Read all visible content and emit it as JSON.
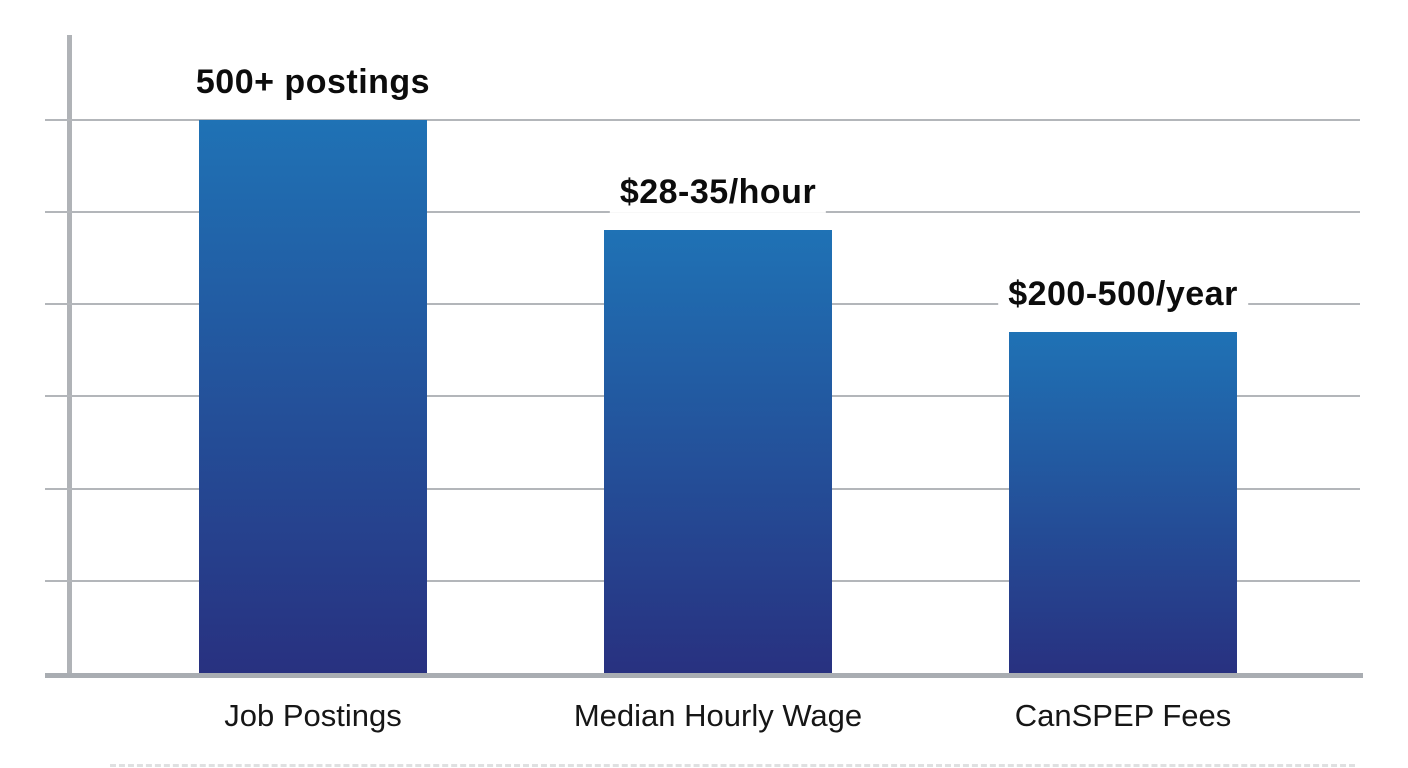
{
  "chart_data": {
    "type": "bar",
    "title": "",
    "xlabel": "",
    "ylabel": "",
    "categories": [
      "Job Postings",
      "Median Hourly Wage",
      "CanSPEP Fees"
    ],
    "values": [
      6.0,
      4.8,
      3.7
    ],
    "value_labels": [
      "500+ postings",
      "$28-35/hour",
      "$200-500/year"
    ],
    "value_note": "y-axis unlabeled; bar values estimated in gridline units (1 unit per horizontal gridline, baseline = 0)",
    "ylim": [
      0,
      6.9
    ],
    "y_gridline_units": [
      1,
      2,
      3,
      4,
      5,
      6
    ],
    "grid": "horizontal",
    "legend_position": "none",
    "colors": {
      "bar_gradient_top": "#1f72b5",
      "bar_gradient_bottom": "#283180",
      "gridline": "#b3b6ba",
      "axis": "#a9adb2",
      "value_label_text": "#0c0c0c",
      "category_label_text": "#161616",
      "background": "#ffffff"
    }
  }
}
